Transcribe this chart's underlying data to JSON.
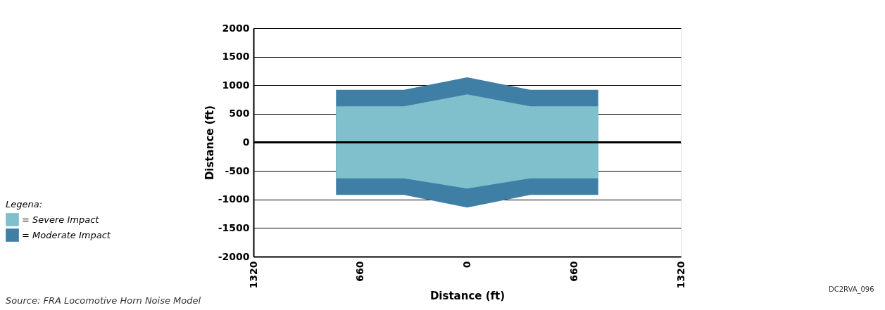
{
  "chart_data": {
    "type": "area",
    "xlabel": "Distance (ft)",
    "ylabel": "Distance (ft)",
    "legend_title": "Legena:",
    "x": [
      -810,
      -390,
      0,
      390,
      810
    ],
    "series": [
      {
        "name": "= Severe Impact",
        "color": "#80c0cc",
        "values": [
          630,
          630,
          840,
          630,
          630
        ]
      },
      {
        "color": "#80c0cc",
        "values": [
          -630,
          -630,
          -810,
          -630,
          -630
        ]
      },
      {
        "name": "= Moderate Impact",
        "color": "#3f7fa6",
        "values": [
          920,
          920,
          1140,
          920,
          920
        ]
      },
      {
        "color": "#3f7fa6",
        "values": [
          -920,
          -920,
          -1140,
          -920,
          -920
        ]
      }
    ],
    "xlim": [
      -1320,
      1320
    ],
    "xticks": [
      {
        "value": -1320,
        "label": "1320"
      },
      {
        "value": -660,
        "label": "660"
      },
      0,
      {
        "value": 660,
        "label": "660"
      },
      {
        "value": 1320,
        "label": "1320"
      }
    ],
    "ylim": [
      -2000,
      2000
    ],
    "yticks": [
      -2000,
      -1500,
      -1000,
      -500,
      0,
      500,
      1000,
      1500,
      2000
    ],
    "ref_lines": [
      {
        "axis": "y",
        "value": 0,
        "color": "#000000"
      }
    ],
    "grid": "y",
    "legend": "bottom left",
    "annotations": [
      "Source: FRA Locomotive Horn Noise Model",
      "DC2RVA_096"
    ]
  }
}
